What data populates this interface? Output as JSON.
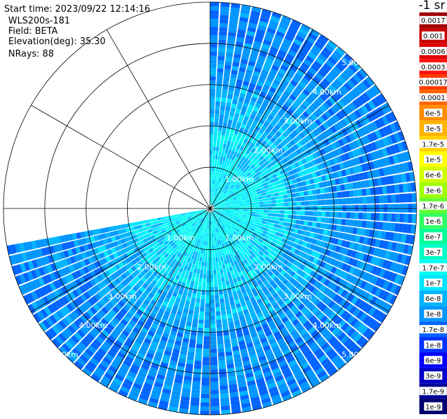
{
  "header": {
    "start_time": "Start time: 2023/09/22 12:14:16",
    "instrument": "WLS200s-181",
    "field": "Field: BETA",
    "elevation": "Elevation(deg): 35.30",
    "nrays": "NRays: 88"
  },
  "colorbar": {
    "unit_label": "-1 sr",
    "labels": [
      "0.0017",
      "0.001",
      "0.0006",
      "0.0003",
      "0.00017",
      "0.0001",
      "6e-5",
      "3e-5",
      "1.7e-5",
      "1e-5",
      "6e-6",
      "3e-6",
      "1.7e-6",
      "1e-6",
      "6e-7",
      "3e-7",
      "1.7e-7",
      "1e-7",
      "6e-8",
      "3e-8",
      "1.7e-8",
      "1e-8",
      "6e-9",
      "3e-9",
      "1.7e-9",
      "1e-9"
    ],
    "colors": [
      "#a00000",
      "#c80000",
      "#e00000",
      "#ff1010",
      "#ff3c00",
      "#ff6400",
      "#ff8c00",
      "#ffb400",
      "#ffd200",
      "#ffff00",
      "#d2ff00",
      "#a0ff00",
      "#64ff32",
      "#32ff64",
      "#00ff96",
      "#00ffc8",
      "#00fff0",
      "#00e6ff",
      "#00b4ff",
      "#0096ff",
      "#0064ff",
      "#0032ff",
      "#0000ff",
      "#0000c8",
      "#000096",
      "#00006e"
    ]
  },
  "chart_data": {
    "type": "heatmap",
    "subtype": "polar-ppi",
    "range_unit": "km",
    "range_rings_km": [
      1,
      2,
      3,
      4,
      5
    ],
    "max_range_km": 5.0,
    "ring_labels": [
      "1.00km",
      "2.00km",
      "3.00km",
      "4.00km",
      "5.00km"
    ],
    "azimuth_spokes_deg": [
      0,
      30,
      60,
      90,
      120,
      150,
      180,
      210,
      240,
      270,
      300,
      330
    ],
    "data_sector_deg": [
      0,
      260
    ],
    "nrays": 88,
    "value_summary": "backscatter mostly between 1e-7 and 3e-8 sr-1; higher (~1e-7 to 3e-7) within about 1.5 km, lower (~1.7e-8 to 1e-8) at longer ranges"
  }
}
